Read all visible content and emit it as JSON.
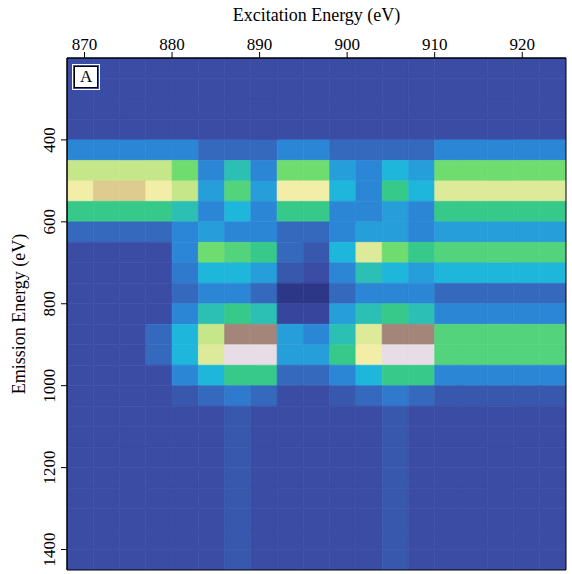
{
  "chart_data": {
    "type": "heatmap",
    "panel_label": "A",
    "x_label": "Excitation Energy (eV)",
    "y_label": "Emission Energy (eV)",
    "xlim": [
      868,
      925
    ],
    "xticks": [
      870,
      880,
      890,
      900,
      910,
      920
    ],
    "ylim": [
      200,
      1450
    ],
    "yticks": [
      400,
      600,
      800,
      1000,
      1200,
      1400
    ],
    "zlim": [
      0,
      10
    ],
    "x_edges": [
      868,
      871,
      874,
      877,
      880,
      883,
      886,
      889,
      892,
      895,
      898,
      901,
      904,
      907,
      910,
      913,
      916,
      919,
      922,
      925
    ],
    "y_edges": [
      200,
      250,
      300,
      350,
      400,
      450,
      500,
      550,
      600,
      650,
      700,
      750,
      800,
      850,
      900,
      950,
      1000,
      1050,
      1100,
      1150,
      1200,
      1250,
      1300,
      1350,
      1400,
      1450
    ],
    "cells": [
      [
        1,
        1,
        1,
        1,
        1,
        1,
        1,
        1,
        1,
        1,
        1,
        1,
        1,
        1,
        1,
        1,
        1,
        1,
        1
      ],
      [
        1,
        1,
        1,
        1,
        1,
        1,
        1,
        1,
        1,
        1,
        1,
        1,
        1,
        1,
        1,
        1,
        1,
        1,
        1
      ],
      [
        1,
        1,
        1,
        1,
        1,
        1,
        1,
        1,
        1,
        1,
        1,
        1,
        1,
        1,
        1,
        1,
        1,
        1,
        1
      ],
      [
        1,
        1,
        1,
        1,
        1,
        1,
        1,
        1,
        1,
        1,
        1,
        1,
        1,
        1,
        1,
        1,
        1,
        1,
        1
      ],
      [
        2,
        2,
        2,
        2,
        2,
        1.5,
        1.5,
        1.5,
        2,
        2,
        1.5,
        1.5,
        1.5,
        1.5,
        2,
        2,
        2,
        2,
        2
      ],
      [
        6,
        6,
        6,
        6,
        5,
        2,
        3.5,
        2,
        5,
        5,
        2.5,
        2,
        3,
        2.5,
        5,
        5,
        5,
        5,
        5
      ],
      [
        7,
        7.5,
        7.5,
        7,
        6,
        2.5,
        4.5,
        2.5,
        7,
        7,
        3,
        2,
        4,
        3,
        6.5,
        6.5,
        6.5,
        6.5,
        6.5
      ],
      [
        4,
        4,
        4,
        4,
        3.5,
        2,
        3,
        2,
        4,
        4,
        2,
        2,
        2.5,
        2,
        4,
        4,
        4,
        4,
        4
      ],
      [
        1.5,
        1.5,
        1.5,
        1.5,
        2,
        2.5,
        2,
        2,
        1.5,
        1.5,
        2,
        2.5,
        2.5,
        2,
        2.5,
        2.5,
        2.5,
        2.5,
        2.5
      ],
      [
        1,
        1,
        1,
        1,
        2,
        5,
        4.5,
        4,
        1.5,
        1.2,
        3,
        6.5,
        5,
        4,
        4.5,
        4.5,
        4.5,
        4.5,
        4.5
      ],
      [
        1,
        1,
        1,
        1,
        1.8,
        3,
        3,
        2.5,
        1.2,
        1,
        2,
        3.5,
        3,
        2.5,
        3,
        3,
        3,
        3,
        3
      ],
      [
        1,
        1,
        1,
        1,
        1.5,
        2,
        2,
        1.5,
        0.3,
        0.3,
        1.5,
        2,
        2,
        2,
        1.5,
        1.5,
        1.5,
        1.5,
        1.5
      ],
      [
        1,
        1,
        1,
        1,
        2,
        3.5,
        4,
        3.5,
        0.8,
        0.8,
        2.5,
        3.5,
        4,
        3.5,
        2,
        2,
        2,
        2,
        2
      ],
      [
        1,
        1,
        1,
        1.5,
        3,
        6,
        9,
        9,
        2.5,
        2,
        3.5,
        6.5,
        9,
        9,
        4.5,
        4.5,
        4.5,
        4.5,
        4.5
      ],
      [
        1,
        1,
        1,
        1.5,
        3,
        6.5,
        10,
        10,
        2.5,
        2.5,
        4,
        7,
        10,
        10,
        4.5,
        4.5,
        4.5,
        4.5,
        4.5
      ],
      [
        1,
        1,
        1,
        1,
        2,
        3,
        4,
        4,
        1.5,
        1.5,
        2,
        3,
        4,
        4,
        2,
        2,
        2,
        2,
        2
      ],
      [
        1,
        1,
        1,
        1,
        1.2,
        1.5,
        1.8,
        1.5,
        1,
        1,
        1.2,
        1.5,
        1.8,
        1.5,
        1.2,
        1.2,
        1.2,
        1.2,
        1.2
      ],
      [
        1,
        1,
        1,
        1,
        1,
        1,
        1.2,
        1,
        1,
        1,
        1,
        1,
        1.2,
        1,
        1,
        1,
        1,
        1,
        1
      ],
      [
        1,
        1,
        1,
        1,
        1,
        1,
        1.2,
        1,
        1,
        1,
        1,
        1,
        1.2,
        1,
        1,
        1,
        1,
        1,
        1
      ],
      [
        1,
        1,
        1,
        1,
        1,
        1,
        1.2,
        1,
        1,
        1,
        1,
        1,
        1.2,
        1,
        1,
        1,
        1,
        1,
        1
      ],
      [
        1,
        1,
        1,
        1,
        1,
        1,
        1.2,
        1,
        1,
        1,
        1,
        1,
        1.2,
        1,
        1,
        1,
        1,
        1,
        1
      ],
      [
        1,
        1,
        1,
        1,
        1,
        1,
        1.2,
        1,
        1,
        1,
        1,
        1,
        1.2,
        1,
        1,
        1,
        1,
        1,
        1
      ],
      [
        1,
        1,
        1,
        1,
        1,
        1,
        1.2,
        1,
        1,
        1,
        1,
        1,
        1.2,
        1,
        1,
        1,
        1,
        1,
        1
      ],
      [
        1,
        1,
        1,
        1,
        1,
        1,
        1.2,
        1,
        1,
        1,
        1,
        1,
        1.2,
        1,
        1,
        1,
        1,
        1,
        1
      ],
      [
        1,
        1,
        1,
        1,
        1,
        1,
        1.2,
        1,
        1,
        1,
        1,
        1,
        1.2,
        1,
        1,
        1,
        1,
        1,
        1
      ]
    ]
  }
}
